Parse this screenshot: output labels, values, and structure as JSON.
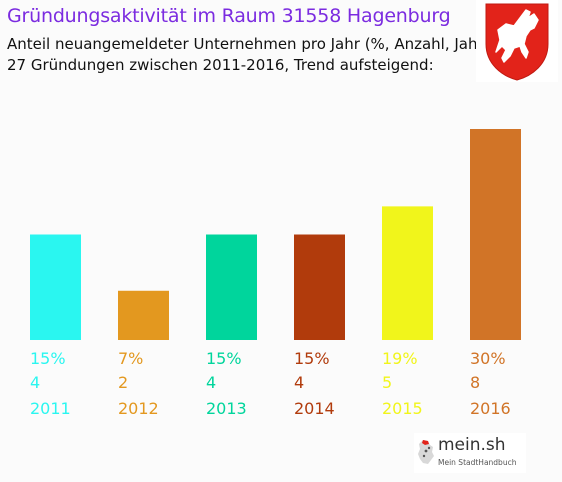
{
  "header": {
    "title": "Gründungsaktivität im Raum 31558 Hagenburg",
    "subtitle_line1": "Anteil neuangemeldeter Unternehmen pro Jahr (%, Anzahl, Jahr)",
    "subtitle_line2": "27 Gründungen zwischen 2011-2016, Trend aufsteigend:"
  },
  "crest": {
    "icon": "white-horse-on-red-shield-icon",
    "color": "#e2231a"
  },
  "branding": {
    "name": "mein.sh",
    "tagline": "Mein StadtHandbuch"
  },
  "chart_data": {
    "type": "bar",
    "categories": [
      "2011",
      "2012",
      "2013",
      "2014",
      "2015",
      "2016"
    ],
    "values": [
      15,
      7,
      15,
      15,
      19,
      30
    ],
    "percent_labels": [
      "15%",
      "7%",
      "15%",
      "15%",
      "19%",
      "30%"
    ],
    "counts": [
      "4",
      "2",
      "4",
      "4",
      "5",
      "8"
    ],
    "colors": [
      "#2af6f0",
      "#e3981f",
      "#00d59c",
      "#b13b0c",
      "#f1f51b",
      "#d17427"
    ],
    "ylim": [
      0,
      30
    ],
    "grid": false,
    "axes": false
  }
}
